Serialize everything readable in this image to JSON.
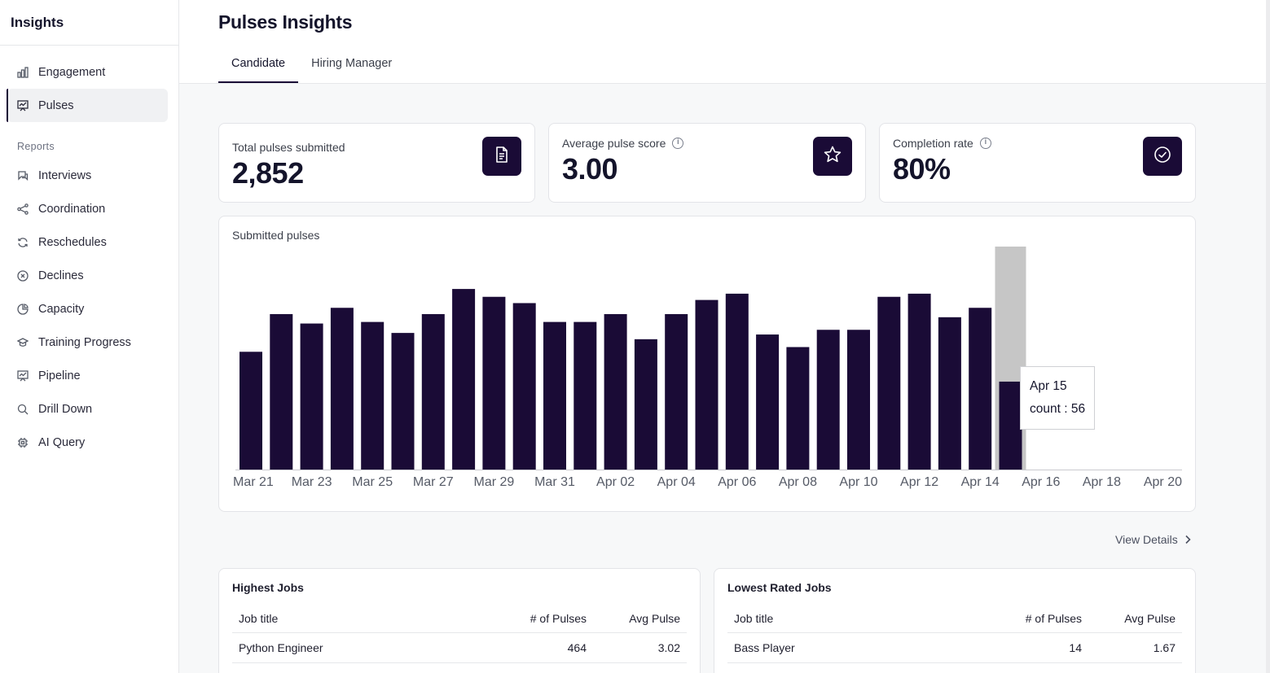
{
  "sidebar": {
    "title": "Insights",
    "items": [
      {
        "label": "Engagement",
        "icon": "bar-chart-icon"
      },
      {
        "label": "Pulses",
        "icon": "pulse-board-icon"
      }
    ],
    "section": "Reports",
    "reports": [
      {
        "label": "Interviews",
        "icon": "chat-icon"
      },
      {
        "label": "Coordination",
        "icon": "share-icon"
      },
      {
        "label": "Reschedules",
        "icon": "refresh-icon"
      },
      {
        "label": "Declines",
        "icon": "x-circle-icon"
      },
      {
        "label": "Capacity",
        "icon": "pie-icon"
      },
      {
        "label": "Training Progress",
        "icon": "graduation-icon"
      },
      {
        "label": "Pipeline",
        "icon": "pipeline-board-icon"
      },
      {
        "label": "Drill Down",
        "icon": "search-icon"
      },
      {
        "label": "AI Query",
        "icon": "chip-icon"
      }
    ]
  },
  "header": {
    "title": "Pulses Insights",
    "tabs": [
      {
        "label": "Candidate"
      },
      {
        "label": "Hiring Manager"
      }
    ]
  },
  "stats": [
    {
      "label": "Total pulses submitted",
      "value": "2,852",
      "icon": "document-icon"
    },
    {
      "label": "Average pulse score",
      "value": "3.00",
      "icon": "star-icon"
    },
    {
      "label": "Completion rate",
      "value": "80%",
      "icon": "check-circle-icon"
    }
  ],
  "chart": {
    "title": "Submitted pulses",
    "tooltip": {
      "date": "Apr 15",
      "text": "count : 56"
    }
  },
  "chart_data": {
    "type": "bar",
    "title": "Submitted pulses",
    "categories": [
      "Mar 21",
      "Mar 22",
      "Mar 23",
      "Mar 24",
      "Mar 25",
      "Mar 26",
      "Mar 27",
      "Mar 28",
      "Mar 29",
      "Mar 30",
      "Mar 31",
      "Apr 01",
      "Apr 02",
      "Apr 03",
      "Apr 04",
      "Apr 05",
      "Apr 06",
      "Apr 07",
      "Apr 08",
      "Apr 09",
      "Apr 10",
      "Apr 11",
      "Apr 12",
      "Apr 13",
      "Apr 14",
      "Apr 15",
      "Apr 16",
      "Apr 17",
      "Apr 18",
      "Apr 19",
      "Apr 20"
    ],
    "values": [
      75,
      99,
      93,
      103,
      94,
      87,
      99,
      115,
      110,
      106,
      94,
      94,
      99,
      83,
      99,
      108,
      112,
      86,
      78,
      89,
      89,
      110,
      112,
      97,
      103,
      56,
      0,
      0,
      0,
      0,
      0
    ],
    "tick_labels": [
      "Mar 21",
      "Mar 23",
      "Mar 25",
      "Mar 27",
      "Mar 29",
      "Mar 31",
      "Apr 02",
      "Apr 04",
      "Apr 06",
      "Apr 08",
      "Apr 10",
      "Apr 12",
      "Apr 14",
      "Apr 16",
      "Apr 18",
      "Apr 20"
    ],
    "highlighted": "Apr 15",
    "ylim": [
      0,
      142
    ],
    "bar_color": "#1a0b36",
    "highlight_color": "#c6c6c6"
  },
  "view_details": "View Details",
  "highest_jobs": {
    "title": "Highest Jobs",
    "columns": [
      "Job title",
      "# of Pulses",
      "Avg Pulse"
    ],
    "rows": [
      [
        "Python Engineer",
        "464",
        "3.02"
      ]
    ]
  },
  "lowest_jobs": {
    "title": "Lowest Rated Jobs",
    "columns": [
      "Job title",
      "# of Pulses",
      "Avg Pulse"
    ],
    "rows": [
      [
        "Bass Player",
        "14",
        "1.67"
      ]
    ]
  },
  "colors": {
    "accent": "#1a0b36"
  }
}
